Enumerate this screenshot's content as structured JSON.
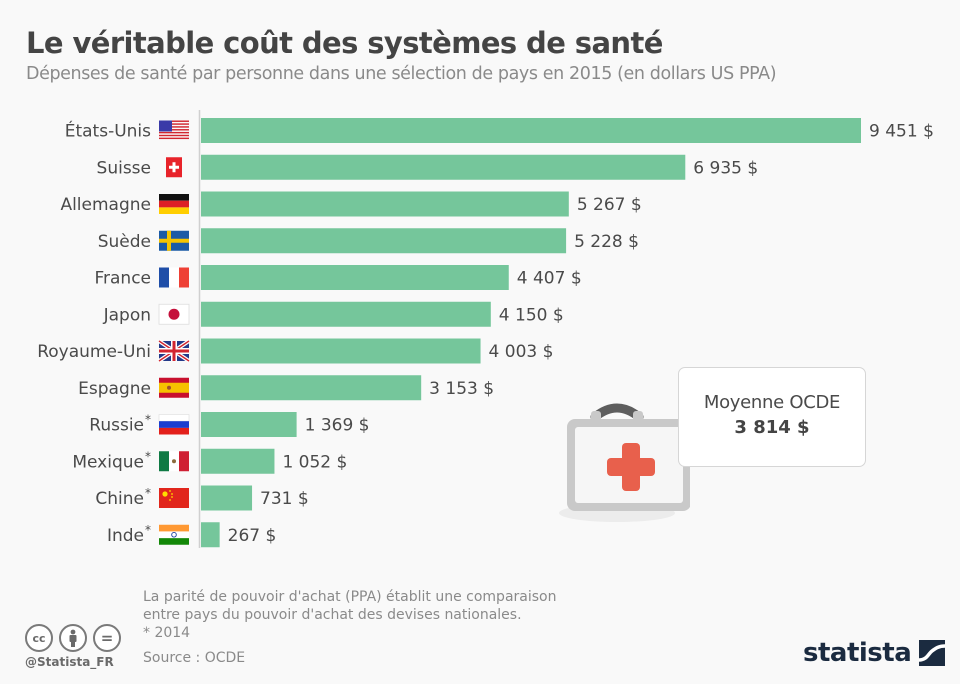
{
  "header": {
    "title": "Le véritable coût des systèmes de santé",
    "subtitle": "Dépenses de santé par personne dans une sélection de pays en 2015 (en dollars US PPA)"
  },
  "chart_data": {
    "type": "bar",
    "orientation": "horizontal",
    "title": "Le véritable coût des systèmes de santé",
    "subtitle": "Dépenses de santé par personne dans une sélection de pays en 2015 (en dollars US PPA)",
    "xlabel": "",
    "ylabel": "",
    "xlim": [
      0,
      9451
    ],
    "grid": false,
    "bar_color": "#75c69b",
    "categories": [
      "États-Unis",
      "Suisse",
      "Allemagne",
      "Suède",
      "France",
      "Japon",
      "Royaume-Uni",
      "Espagne",
      "Russie",
      "Mexique",
      "Chine",
      "Inde"
    ],
    "footnote_marks": [
      false,
      false,
      false,
      false,
      false,
      false,
      false,
      false,
      true,
      true,
      true,
      true
    ],
    "flags": [
      "us-flag",
      "switzerland-flag",
      "germany-flag",
      "sweden-flag",
      "france-flag",
      "japan-flag",
      "uk-flag",
      "spain-flag",
      "russia-flag",
      "mexico-flag",
      "china-flag",
      "india-flag"
    ],
    "values": [
      9451,
      6935,
      5267,
      5228,
      4407,
      4150,
      4003,
      3153,
      1369,
      1052,
      731,
      267
    ],
    "value_labels": [
      "9 451 $",
      "6 935 $",
      "5 267 $",
      "5 228 $",
      "4 407 $",
      "4 150 $",
      "4 003 $",
      "3 153 $",
      "1 369 $",
      "1 052 $",
      "731 $",
      "267 $"
    ],
    "annotations": [
      {
        "label": "Moyenne OCDE",
        "value": 3814,
        "value_label": "3 814 $"
      }
    ]
  },
  "callout": {
    "label": "Moyenne OCDE",
    "value": "3 814 $",
    "icon": "first-aid-kit-icon"
  },
  "footer": {
    "note_line1": "La parité de pouvoir d'achat (PPA) établit une comparaison",
    "note_line2": "entre pays du pouvoir d'achat des devises nationales.",
    "note_star": "* 2014",
    "source": "Source : OCDE",
    "handle": "@Statista_FR",
    "license_icons": [
      "cc-icon",
      "by-attribution-icon",
      "no-derivatives-icon"
    ],
    "cc_text": "cc",
    "nd_text": "=",
    "brand": "statista"
  },
  "colors": {
    "bar": "#75c69b",
    "accent_red": "#e8604c",
    "brand_navy": "#1b2b40",
    "background": "#f9f9f9"
  }
}
